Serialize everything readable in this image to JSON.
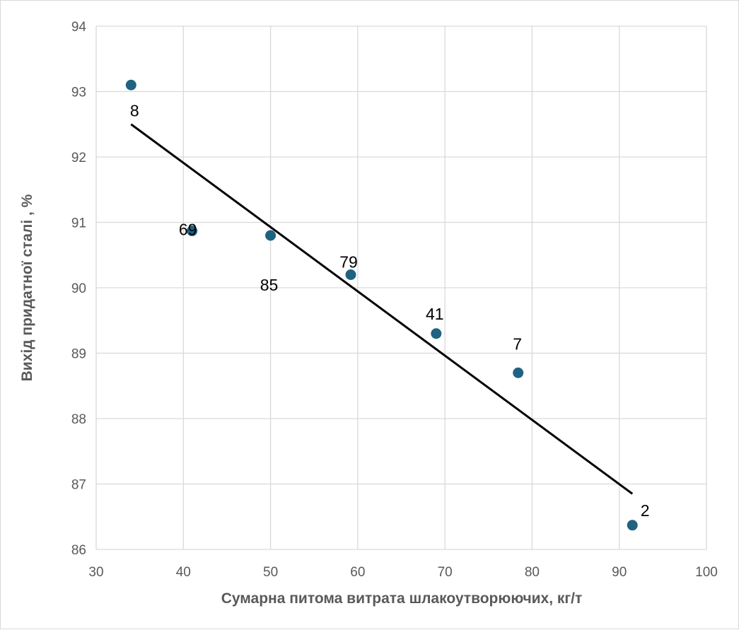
{
  "chart_data": {
    "type": "scatter",
    "title": "",
    "xlabel": "Сумарна питома витрата шлакоутворюючих, кг/т",
    "ylabel": "Вихід придатної сталі , %",
    "xlim": [
      30,
      100
    ],
    "ylim": [
      86,
      94
    ],
    "x_ticks": [
      "30",
      "40",
      "50",
      "60",
      "70",
      "80",
      "90",
      "100"
    ],
    "y_ticks": [
      "86",
      "87",
      "88",
      "89",
      "90",
      "91",
      "92",
      "93",
      "94"
    ],
    "grid": true,
    "legend": "none",
    "marker_color": "#1f6281",
    "trendline_color": "#000000",
    "points": [
      {
        "x": 34.0,
        "y": 93.1,
        "label": "8"
      },
      {
        "x": 41.0,
        "y": 90.87,
        "label": "69"
      },
      {
        "x": 50.0,
        "y": 90.8,
        "label": "85"
      },
      {
        "x": 59.2,
        "y": 90.2,
        "label": "79"
      },
      {
        "x": 69.0,
        "y": 89.3,
        "label": "41"
      },
      {
        "x": 78.4,
        "y": 88.7,
        "label": "7"
      },
      {
        "x": 91.5,
        "y": 86.37,
        "label": "2"
      }
    ],
    "trendline": {
      "x": [
        34.0,
        91.5
      ],
      "y": [
        92.5,
        86.85
      ]
    }
  }
}
